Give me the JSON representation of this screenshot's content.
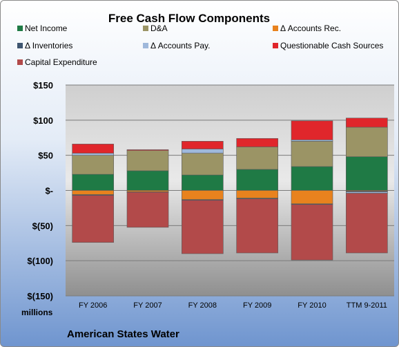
{
  "chart_data": {
    "type": "bar",
    "stacked": true,
    "title": "Free Cash Flow Components",
    "unit_label": "millions",
    "company": "American States Water",
    "categories": [
      "FY 2006",
      "FY 2007",
      "FY 2008",
      "FY 2009",
      "FY 2010",
      "TTM 9-2011"
    ],
    "ylim": [
      -150,
      150
    ],
    "yticks": [
      150,
      100,
      50,
      0,
      -50,
      -100,
      -150
    ],
    "ytick_labels": [
      "$150",
      "$100",
      "$50",
      "$-",
      "$(50)",
      "$(100)",
      "$(150)"
    ],
    "grid": true,
    "legend_position": "top",
    "series": [
      {
        "name": "Net Income",
        "color": "#1f7a45",
        "values": [
          23,
          28,
          22,
          30,
          34,
          48
        ]
      },
      {
        "name": "D&A",
        "color": "#9b9465",
        "values": [
          27,
          29,
          31,
          32,
          36,
          42
        ]
      },
      {
        "name": "Δ Accounts Rec.",
        "color": "#e8821e",
        "values": [
          -6,
          -2,
          -13,
          -11,
          -19,
          -1
        ]
      },
      {
        "name": "Δ Inventories",
        "color": "#3f5670",
        "values": [
          -1,
          -0.5,
          -1,
          -1,
          -1,
          -1
        ]
      },
      {
        "name": "Δ Accounts Pay.",
        "color": "#9fb8db",
        "values": [
          3,
          0,
          6,
          0,
          2,
          -2
        ]
      },
      {
        "name": "Questionable Cash Sources",
        "color": "#e0262b",
        "values": [
          13,
          1,
          11,
          12,
          27,
          13
        ]
      },
      {
        "name": "Capital Expenditure",
        "color": "#b24a4a",
        "values": [
          -67,
          -50,
          -76,
          -77,
          -79,
          -85
        ]
      }
    ]
  }
}
